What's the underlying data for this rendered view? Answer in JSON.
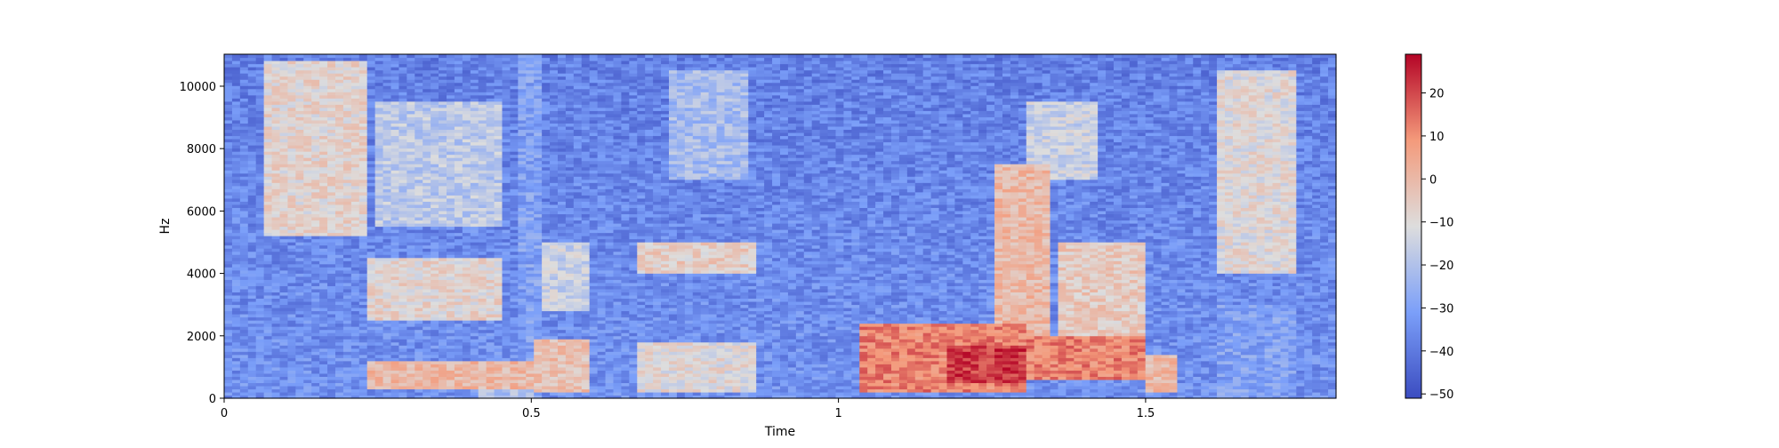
{
  "chart_data": {
    "type": "heatmap",
    "title": "",
    "xlabel": "Time",
    "ylabel": "Hz",
    "xlim": [
      0,
      1.81
    ],
    "ylim": [
      0,
      11025
    ],
    "x_ticks": [
      0,
      0.5,
      1,
      1.5
    ],
    "x_tick_labels": [
      "0",
      "0.5",
      "1",
      "1.5"
    ],
    "y_ticks": [
      0,
      2000,
      4000,
      6000,
      8000,
      10000
    ],
    "y_tick_labels": [
      "0",
      "2000",
      "4000",
      "6000",
      "8000",
      "10000"
    ],
    "colormap": "coolwarm",
    "colorbar": {
      "range": [
        -51,
        29
      ],
      "ticks": [
        20,
        10,
        0,
        -10,
        -20,
        -30,
        -40,
        -50
      ],
      "tick_labels": [
        "20",
        "10",
        "0",
        "−10",
        "−20",
        "−30",
        "−40",
        "−50"
      ]
    },
    "colors": {
      "low": "#3b4cc0",
      "mid": "#dddddd",
      "high": "#b40426"
    },
    "regions": [
      {
        "t": [
          0.0,
          0.04
        ],
        "f": [
          0,
          11025
        ],
        "db": -42
      },
      {
        "t": [
          0.04,
          0.23
        ],
        "f": [
          0,
          4500
        ],
        "db": -36
      },
      {
        "t": [
          0.06,
          0.23
        ],
        "f": [
          5200,
          10800
        ],
        "db": -8
      },
      {
        "t": [
          0.23,
          0.45
        ],
        "f": [
          2500,
          4500
        ],
        "db": -8
      },
      {
        "t": [
          0.23,
          0.5
        ],
        "f": [
          300,
          1200
        ],
        "db": 0
      },
      {
        "t": [
          0.25,
          0.45
        ],
        "f": [
          5500,
          9500
        ],
        "db": -18
      },
      {
        "t": [
          0.42,
          0.5
        ],
        "f": [
          0,
          400
        ],
        "db": -20
      },
      {
        "t": [
          0.48,
          0.52
        ],
        "f": [
          0,
          11025
        ],
        "db": -30
      },
      {
        "t": [
          0.5,
          0.6
        ],
        "f": [
          200,
          1900
        ],
        "db": -2
      },
      {
        "t": [
          0.52,
          0.6
        ],
        "f": [
          2800,
          5000
        ],
        "db": -15
      },
      {
        "t": [
          0.6,
          0.67
        ],
        "f": [
          0,
          11025
        ],
        "db": -44
      },
      {
        "t": [
          0.67,
          0.87
        ],
        "f": [
          200,
          1800
        ],
        "db": -10
      },
      {
        "t": [
          0.67,
          0.87
        ],
        "f": [
          4000,
          5000
        ],
        "db": -6
      },
      {
        "t": [
          0.72,
          0.85
        ],
        "f": [
          7000,
          10500
        ],
        "db": -22
      },
      {
        "t": [
          0.87,
          0.95
        ],
        "f": [
          0,
          11025
        ],
        "db": -46
      },
      {
        "t": [
          0.95,
          1.03
        ],
        "f": [
          0,
          11025
        ],
        "db": -38
      },
      {
        "t": [
          1.04,
          1.3
        ],
        "f": [
          200,
          2400
        ],
        "db": 12
      },
      {
        "t": [
          1.18,
          1.3
        ],
        "f": [
          500,
          1700
        ],
        "db": 22
      },
      {
        "t": [
          1.25,
          1.35
        ],
        "f": [
          2000,
          7500
        ],
        "db": 0
      },
      {
        "t": [
          1.3,
          1.5
        ],
        "f": [
          600,
          2000
        ],
        "db": 12
      },
      {
        "t": [
          1.36,
          1.5
        ],
        "f": [
          2000,
          5000
        ],
        "db": -5
      },
      {
        "t": [
          1.3,
          1.42
        ],
        "f": [
          7000,
          9500
        ],
        "db": -15
      },
      {
        "t": [
          1.5,
          1.55
        ],
        "f": [
          200,
          1400
        ],
        "db": 0
      },
      {
        "t": [
          1.56,
          1.6
        ],
        "f": [
          0,
          11025
        ],
        "db": -46
      },
      {
        "t": [
          1.62,
          1.75
        ],
        "f": [
          0,
          3000
        ],
        "db": -30
      },
      {
        "t": [
          1.62,
          1.75
        ],
        "f": [
          4000,
          10500
        ],
        "db": -10
      },
      {
        "t": [
          1.75,
          1.81
        ],
        "f": [
          0,
          11025
        ],
        "db": -38
      }
    ]
  }
}
